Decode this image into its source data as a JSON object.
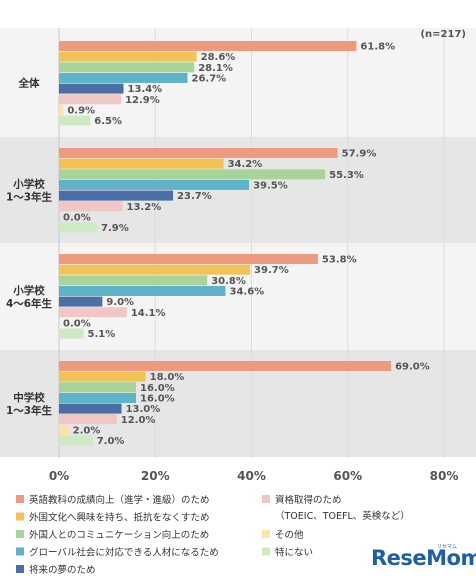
{
  "chart_data": {
    "type": "bar",
    "orientation": "horizontal",
    "note": "(n=217)",
    "groups": [
      {
        "label": [
          "全体"
        ]
      },
      {
        "label": [
          "小学校",
          "1〜3年生"
        ]
      },
      {
        "label": [
          "小学校",
          "4〜6年生"
        ]
      },
      {
        "label": [
          "中学校",
          "1〜3年生"
        ]
      }
    ],
    "series": [
      {
        "name": "英語教科の成績向上（進学・進級）のため",
        "color": "#ee9a80",
        "values": [
          61.8,
          57.9,
          53.8,
          69.0
        ]
      },
      {
        "name": "外国文化へ興味を持ち、抵抗をなくすため",
        "color": "#f2c257",
        "values": [
          28.6,
          34.2,
          39.7,
          18.0
        ]
      },
      {
        "name": "外国人とのコミュニケーション向上のため",
        "color": "#a8d49a",
        "values": [
          28.1,
          55.3,
          30.8,
          16.0
        ]
      },
      {
        "name": "グローバル社会に対応できる人材になるため",
        "color": "#5fb3c9",
        "values": [
          26.7,
          39.5,
          34.6,
          16.0
        ]
      },
      {
        "name": "将来の夢のため",
        "color": "#4a6fa5",
        "values": [
          13.4,
          23.7,
          9.0,
          13.0
        ]
      },
      {
        "name": "資格取得のため\n（TOEIC、TOEFL、英検など）",
        "color": "#f1c6c4",
        "values": [
          12.9,
          13.2,
          14.1,
          12.0
        ]
      },
      {
        "name": "その他",
        "color": "#fae5a3",
        "values": [
          0.9,
          0.0,
          0.0,
          2.0
        ]
      },
      {
        "name": "特にない",
        "color": "#cfe9c4",
        "values": [
          6.5,
          7.9,
          5.1,
          7.0
        ]
      }
    ],
    "xlim": [
      0,
      80
    ],
    "xticks": [
      0,
      20,
      40,
      60,
      80
    ],
    "value_suffix": "%",
    "grid": true,
    "legend_position": "bottom"
  },
  "logo": {
    "text": "ReseMom",
    "subtext": "リセマム"
  }
}
